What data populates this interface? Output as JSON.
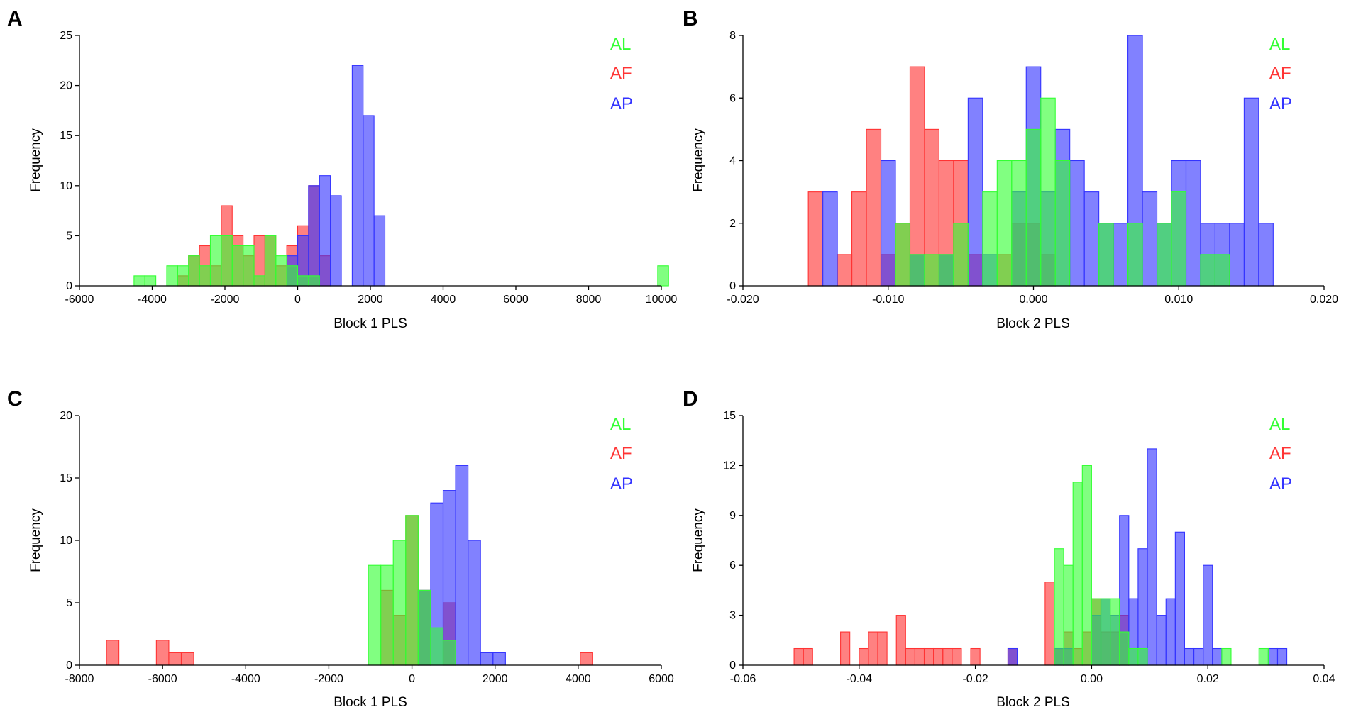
{
  "colors": {
    "AL": "#33ff33",
    "AF": "#ff3333",
    "AP": "#3333ff"
  },
  "chart_data": [
    {
      "type": "bar",
      "panel": "A",
      "xlabel": "Block 1 PLS",
      "ylabel": "Frequency",
      "xlim": [
        -6000,
        10000
      ],
      "ylim": [
        0,
        25
      ],
      "xticks": [
        "-6000",
        "-4000",
        "-2000",
        "0",
        "2000",
        "4000",
        "6000",
        "8000",
        "10000"
      ],
      "yticks": [
        "0",
        "5",
        "10",
        "15",
        "20",
        "25"
      ],
      "bin_width": 300,
      "legend": [
        "AL",
        "AF",
        "AP"
      ],
      "series": [
        {
          "name": "AF",
          "bins": [
            [
              -3300,
              1
            ],
            [
              -3000,
              3
            ],
            [
              -2700,
              4
            ],
            [
              -2400,
              2
            ],
            [
              -2100,
              8
            ],
            [
              -1800,
              5
            ],
            [
              -1500,
              3
            ],
            [
              -1200,
              5
            ],
            [
              -900,
              5
            ],
            [
              -600,
              2
            ],
            [
              -300,
              4
            ],
            [
              0,
              6
            ],
            [
              300,
              10
            ],
            [
              600,
              3
            ]
          ]
        },
        {
          "name": "AP",
          "bins": [
            [
              -300,
              3
            ],
            [
              0,
              5
            ],
            [
              300,
              10
            ],
            [
              600,
              11
            ],
            [
              900,
              9
            ],
            [
              1500,
              22
            ],
            [
              1800,
              17
            ],
            [
              2100,
              7
            ]
          ]
        },
        {
          "name": "AL",
          "bins": [
            [
              -4500,
              1
            ],
            [
              -4200,
              1
            ],
            [
              -3600,
              2
            ],
            [
              -3300,
              2
            ],
            [
              -3000,
              3
            ],
            [
              -2700,
              2
            ],
            [
              -2400,
              5
            ],
            [
              -2100,
              5
            ],
            [
              -1800,
              4
            ],
            [
              -1500,
              4
            ],
            [
              -1200,
              1
            ],
            [
              -900,
              5
            ],
            [
              -600,
              3
            ],
            [
              -300,
              2
            ],
            [
              0,
              1
            ],
            [
              300,
              1
            ],
            [
              9900,
              2
            ]
          ]
        }
      ]
    },
    {
      "type": "bar",
      "panel": "B",
      "xlabel": "Block 2 PLS",
      "ylabel": "Frequency",
      "xlim": [
        -0.02,
        0.02
      ],
      "ylim": [
        0,
        8
      ],
      "xticks": [
        "-0.020",
        "-0.010",
        "0.000",
        "0.010",
        "0.020"
      ],
      "yticks": [
        "0",
        "2",
        "4",
        "6",
        "8"
      ],
      "bin_width": 0.001,
      "legend": [
        "AL",
        "AF",
        "AP"
      ],
      "series": [
        {
          "name": "AF",
          "bins": [
            [
              -0.0155,
              3
            ],
            [
              -0.0135,
              1
            ],
            [
              -0.0125,
              3
            ],
            [
              -0.0115,
              5
            ],
            [
              -0.0105,
              1
            ],
            [
              -0.0095,
              2
            ],
            [
              -0.0085,
              7
            ],
            [
              -0.0075,
              5
            ],
            [
              -0.0065,
              4
            ],
            [
              -0.0055,
              4
            ],
            [
              -0.0045,
              1
            ],
            [
              -0.0025,
              1
            ],
            [
              -0.0015,
              2
            ],
            [
              -0.0005,
              2
            ],
            [
              0.0005,
              1
            ]
          ]
        },
        {
          "name": "AP",
          "bins": [
            [
              -0.0145,
              3
            ],
            [
              -0.0105,
              4
            ],
            [
              -0.0085,
              1
            ],
            [
              -0.0065,
              1
            ],
            [
              -0.0045,
              6
            ],
            [
              -0.0035,
              1
            ],
            [
              -0.0015,
              3
            ],
            [
              -0.0005,
              7
            ],
            [
              0.0005,
              3
            ],
            [
              0.0015,
              5
            ],
            [
              0.0025,
              4
            ],
            [
              0.0035,
              3
            ],
            [
              0.0045,
              2
            ],
            [
              0.0055,
              2
            ],
            [
              0.0065,
              8
            ],
            [
              0.0075,
              3
            ],
            [
              0.0085,
              2
            ],
            [
              0.0095,
              4
            ],
            [
              0.0105,
              4
            ],
            [
              0.0115,
              2
            ],
            [
              0.0125,
              2
            ],
            [
              0.0135,
              2
            ],
            [
              0.0145,
              6
            ],
            [
              0.0155,
              2
            ]
          ]
        },
        {
          "name": "AL",
          "bins": [
            [
              -0.0095,
              2
            ],
            [
              -0.0085,
              1
            ],
            [
              -0.0075,
              1
            ],
            [
              -0.0065,
              1
            ],
            [
              -0.0055,
              2
            ],
            [
              -0.0035,
              3
            ],
            [
              -0.0025,
              4
            ],
            [
              -0.0015,
              4
            ],
            [
              -0.0005,
              5
            ],
            [
              0.0005,
              6
            ],
            [
              0.0015,
              4
            ],
            [
              0.0045,
              2
            ],
            [
              0.0065,
              2
            ],
            [
              0.0085,
              2
            ],
            [
              0.0095,
              3
            ],
            [
              0.0115,
              1
            ],
            [
              0.0125,
              1
            ]
          ]
        }
      ]
    },
    {
      "type": "bar",
      "panel": "C",
      "xlabel": "Block 1 PLS",
      "ylabel": "Frequency",
      "xlim": [
        -8000,
        6000
      ],
      "ylim": [
        0,
        20
      ],
      "xticks": [
        "-8000",
        "-6000",
        "-4000",
        "-2000",
        "0",
        "2000",
        "4000",
        "6000"
      ],
      "yticks": [
        "0",
        "5",
        "10",
        "15",
        "20"
      ],
      "bin_width": 300,
      "legend": [
        "AL",
        "AF",
        "AP"
      ],
      "series": [
        {
          "name": "AF",
          "bins": [
            [
              -7350,
              2
            ],
            [
              -6150,
              2
            ],
            [
              -5850,
              1
            ],
            [
              -5550,
              1
            ],
            [
              -750,
              6
            ],
            [
              -450,
              4
            ],
            [
              -150,
              12
            ],
            [
              150,
              6
            ],
            [
              750,
              5
            ],
            [
              4050,
              1
            ]
          ]
        },
        {
          "name": "AP",
          "bins": [
            [
              150,
              6
            ],
            [
              450,
              13
            ],
            [
              750,
              14
            ],
            [
              1050,
              16
            ],
            [
              1350,
              10
            ],
            [
              1650,
              1
            ],
            [
              1950,
              1
            ]
          ]
        },
        {
          "name": "AL",
          "bins": [
            [
              -1050,
              8
            ],
            [
              -750,
              8
            ],
            [
              -450,
              10
            ],
            [
              -150,
              12
            ],
            [
              150,
              6
            ],
            [
              450,
              3
            ],
            [
              750,
              2
            ]
          ]
        }
      ]
    },
    {
      "type": "bar",
      "panel": "D",
      "xlabel": "Block 2 PLS",
      "ylabel": "Frequency",
      "xlim": [
        -0.06,
        0.04
      ],
      "ylim": [
        0,
        15
      ],
      "xticks": [
        "-0.06",
        "-0.04",
        "-0.02",
        "0.00",
        "0.02",
        "0.04"
      ],
      "yticks": [
        "0",
        "3",
        "6",
        "9",
        "12",
        "15"
      ],
      "bin_width": 0.0016,
      "legend": [
        "AL",
        "AF",
        "AP"
      ],
      "series": [
        {
          "name": "AF",
          "bins": [
            [
              -0.0512,
              1
            ],
            [
              -0.0496,
              1
            ],
            [
              -0.0432,
              2
            ],
            [
              -0.04,
              1
            ],
            [
              -0.0384,
              2
            ],
            [
              -0.0368,
              2
            ],
            [
              -0.0336,
              3
            ],
            [
              -0.032,
              1
            ],
            [
              -0.0304,
              1
            ],
            [
              -0.0288,
              1
            ],
            [
              -0.0272,
              1
            ],
            [
              -0.0256,
              1
            ],
            [
              -0.024,
              1
            ],
            [
              -0.0208,
              1
            ],
            [
              -0.0144,
              1
            ],
            [
              -0.008,
              5
            ],
            [
              -0.0064,
              1
            ],
            [
              -0.0048,
              2
            ],
            [
              -0.0032,
              1
            ],
            [
              -0.0016,
              2
            ],
            [
              0.0,
              4
            ],
            [
              0.0016,
              2
            ],
            [
              0.0032,
              2
            ],
            [
              0.0048,
              3
            ]
          ]
        },
        {
          "name": "AP",
          "bins": [
            [
              -0.0144,
              1
            ],
            [
              -0.0064,
              1
            ],
            [
              -0.0048,
              1
            ],
            [
              0.0,
              3
            ],
            [
              0.0016,
              4
            ],
            [
              0.0032,
              3
            ],
            [
              0.0048,
              9
            ],
            [
              0.0064,
              4
            ],
            [
              0.008,
              7
            ],
            [
              0.0096,
              13
            ],
            [
              0.0112,
              3
            ],
            [
              0.0128,
              4
            ],
            [
              0.0144,
              8
            ],
            [
              0.016,
              1
            ],
            [
              0.0176,
              1
            ],
            [
              0.0192,
              6
            ],
            [
              0.0208,
              1
            ],
            [
              0.0304,
              1
            ],
            [
              0.032,
              1
            ]
          ]
        },
        {
          "name": "AL",
          "bins": [
            [
              -0.0064,
              7
            ],
            [
              -0.0048,
              6
            ],
            [
              -0.0032,
              11
            ],
            [
              -0.0016,
              12
            ],
            [
              0.0,
              4
            ],
            [
              0.0016,
              4
            ],
            [
              0.0032,
              4
            ],
            [
              0.0048,
              2
            ],
            [
              0.0064,
              1
            ],
            [
              0.008,
              1
            ],
            [
              0.0224,
              1
            ],
            [
              0.0288,
              1
            ]
          ]
        }
      ]
    }
  ]
}
